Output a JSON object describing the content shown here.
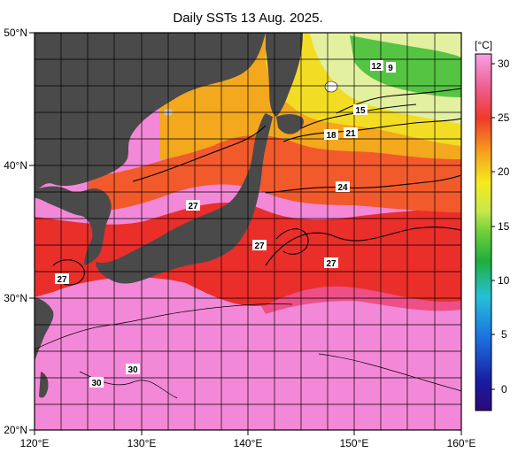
{
  "title": "Daily SSTs 13 Aug. 2025.",
  "map": {
    "lon_ticks": [
      "120°E",
      "130°E",
      "140°E",
      "150°E",
      "160°E"
    ],
    "lat_ticks": [
      "50°N",
      "40°N",
      "30°N",
      "20°N"
    ],
    "extent": {
      "lon": [
        120,
        160
      ],
      "lat": [
        20,
        50
      ]
    }
  },
  "colorbar": {
    "unit": "[°C]",
    "ticks": [
      "30",
      "25",
      "20",
      "15",
      "10",
      "5",
      "0"
    ],
    "range": [
      -2,
      32
    ]
  },
  "contour_labels": [
    "12",
    "9",
    "15",
    "18",
    "21",
    "24",
    "27",
    "27",
    "27",
    "27",
    "30",
    "30"
  ],
  "colors": {
    "land": "#4a4a4a",
    "warm_pink": "#f27fd3",
    "red": "#e8352f",
    "orange": "#f3612b",
    "yellow": "#f3c21a",
    "green": "#5ec73f"
  }
}
